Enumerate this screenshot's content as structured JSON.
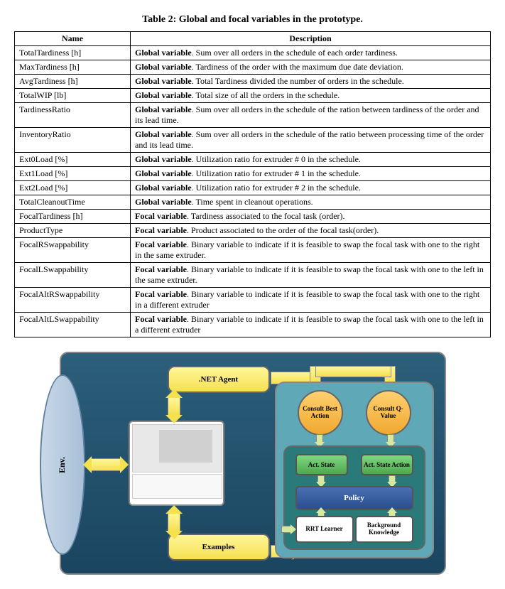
{
  "table": {
    "title": "Table 2: Global and focal variables in the prototype.",
    "headers": [
      "Name",
      "Description"
    ],
    "rows": [
      {
        "name": "TotalTardiness [h]",
        "desc_bold": "Global variable",
        "desc_rest": ". Sum over all orders in the schedule of each order tardiness."
      },
      {
        "name": "MaxTardiness [h]",
        "desc_bold": "Global variable",
        "desc_rest": ". Tardiness of the order with the maximum due date deviation."
      },
      {
        "name": "AvgTardiness [h]",
        "desc_bold": "Global variable",
        "desc_rest": ". Total Tardiness divided the number of orders in the schedule."
      },
      {
        "name": "TotalWIP [lb]",
        "desc_bold": "Global variable",
        "desc_rest": ". Total size of all the orders in the schedule."
      },
      {
        "name": "TardinessRatio",
        "desc_bold": "Global variable",
        "desc_rest": ". Sum over all orders in the schedule of the ration between tardiness of the order and its lead time."
      },
      {
        "name": "InventoryRatio",
        "desc_bold": "Global variable",
        "desc_rest": ". Sum over all orders in the schedule of the ratio between processing time of the order and its lead time."
      },
      {
        "name": "Ext0Load [%]",
        "desc_bold": "Global variable",
        "desc_rest": ". Utilization ratio for extruder # 0 in the schedule."
      },
      {
        "name": "Ext1Load [%]",
        "desc_bold": "Global variable",
        "desc_rest": ". Utilization ratio for extruder # 1 in the schedule."
      },
      {
        "name": "Ext2Load [%]",
        "desc_bold": "Global variable",
        "desc_rest": ". Utilization ratio for extruder # 2 in the schedule."
      },
      {
        "name": "TotalCleanoutTime",
        "desc_bold": "Global variable",
        "desc_rest": ". Time spent in cleanout operations."
      },
      {
        "name": "FocalTardiness [h]",
        "desc_bold": "Focal variable",
        "desc_rest": ".  Tardiness associated to the focal task (order)."
      },
      {
        "name": "ProductType",
        "desc_bold": "Focal variable",
        "desc_rest": ".  Product associated to the order of the focal task(order)."
      },
      {
        "name": "FocalRSwappability",
        "desc_bold": "Focal variable",
        "desc_rest": ".  Binary variable to indicate if it is feasible to swap the focal task with one to the right in the same extruder."
      },
      {
        "name": "FocalLSwappability",
        "desc_bold": "Focal variable",
        "desc_rest": ".  Binary variable to indicate if it is feasible to swap the focal task with one to the left in the same extruder."
      },
      {
        "name": "FocalAltRSwappability",
        "desc_bold": "Focal variable",
        "desc_rest": ".  Binary variable to indicate if it is feasible to swap the focal task with one to the right in a different extruder"
      },
      {
        "name": "FocalAltLSwappability",
        "desc_bold": "Focal variable",
        "desc_rest": ".  Binary variable to indicate if it is feasible to swap the focal task with one to the left in a different extruder"
      }
    ]
  },
  "diagram": {
    "env": "Env.",
    "net_agent": ".NET Agent",
    "examples": "Examples",
    "consult_best": "Consult Best Action",
    "consult_q": "Consult Q-Value",
    "act_state": "Act. State",
    "act_state_action": "Act. State Action",
    "policy": "Policy",
    "rrt": "RRT Learner",
    "bg": "Background Knowledge"
  }
}
